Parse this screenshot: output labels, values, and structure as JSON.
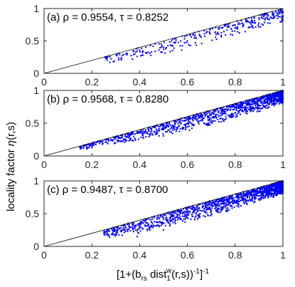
{
  "figure": {
    "ylabel_main": "locality factor ",
    "ylabel_sym": "η",
    "ylabel_tail": "(r,s)",
    "xlabel_a": "[1+(b",
    "xlabel_b": "rs",
    "xlabel_c": " dist",
    "xlabel_d": "1",
    "xlabel_e": "w",
    "xlabel_f": "(r,s))",
    "xlabel_g": "-1",
    "xlabel_h": "]",
    "xlabel_i": "-1"
  },
  "chart_data": [
    {
      "type": "scatter",
      "panel": "a",
      "annotation": "(a) ρ = 0.9554, τ = 0.8252",
      "xlim": [
        0,
        1
      ],
      "ylim": [
        0,
        1
      ],
      "xticks": [
        "0",
        "0.2",
        "0.4",
        "0.6",
        "0.8",
        "1"
      ],
      "yticks": [
        "0",
        "0.5",
        "1"
      ],
      "show_xticklabels": true,
      "reference_line": "y = x",
      "point_color": "#0000ff",
      "n_points": 300,
      "seed": 11,
      "xrange_points": [
        0.25,
        1
      ],
      "x_skew": 1.8,
      "ratio_range": [
        0.55,
        1
      ],
      "points_sample": [
        [
          0.26,
          0.25
        ],
        [
          0.29,
          0.18
        ],
        [
          0.37,
          0.22
        ],
        [
          0.39,
          0.26
        ],
        [
          0.41,
          0.28
        ],
        [
          0.45,
          0.33
        ],
        [
          0.5,
          0.37
        ],
        [
          0.55,
          0.48
        ],
        [
          0.6,
          0.5
        ],
        [
          0.66,
          0.46
        ],
        [
          0.72,
          0.6
        ],
        [
          0.8,
          0.7
        ],
        [
          0.87,
          0.82
        ],
        [
          0.92,
          0.88
        ],
        [
          0.97,
          0.95
        ]
      ]
    },
    {
      "type": "scatter",
      "panel": "b",
      "annotation": "(b) ρ = 0.9568, τ = 0.8280",
      "xlim": [
        0,
        1
      ],
      "ylim": [
        0,
        1
      ],
      "xticks": [
        "0",
        "0.2",
        "0.4",
        "0.6",
        "0.8",
        "1"
      ],
      "yticks": [
        "0",
        "0.5",
        "1"
      ],
      "show_xticklabels": true,
      "reference_line": "y = x",
      "point_color": "#0000ff",
      "n_points": 1200,
      "seed": 23,
      "xrange_points": [
        0.15,
        1
      ],
      "x_skew": 2.3,
      "ratio_range": [
        0.6,
        1
      ],
      "points_sample": [
        [
          0.15,
          0.13
        ],
        [
          0.22,
          0.21
        ],
        [
          0.35,
          0.3
        ],
        [
          0.45,
          0.42
        ],
        [
          0.52,
          0.4
        ],
        [
          0.6,
          0.5
        ],
        [
          0.65,
          0.6
        ],
        [
          0.7,
          0.55
        ],
        [
          0.75,
          0.7
        ],
        [
          0.8,
          0.66
        ],
        [
          0.85,
          0.8
        ],
        [
          0.9,
          0.85
        ],
        [
          0.95,
          0.92
        ],
        [
          1.0,
          0.99
        ]
      ]
    },
    {
      "type": "scatter",
      "panel": "c",
      "annotation": "(c) ρ = 0.9487, τ = 0.8700",
      "xlim": [
        0,
        1
      ],
      "ylim": [
        0,
        1
      ],
      "xticks": [
        "0",
        "0.2",
        "0.4",
        "0.6",
        "0.8",
        "1"
      ],
      "yticks": [
        "0",
        "0.5",
        "1"
      ],
      "show_xticklabels": true,
      "reference_line": "y = x",
      "point_color": "#0000ff",
      "n_points": 1500,
      "seed": 37,
      "xrange_points": [
        0.25,
        1
      ],
      "x_skew": 2.6,
      "ratio_range": [
        0.45,
        1
      ],
      "points_sample": [
        [
          0.26,
          0.18
        ],
        [
          0.39,
          0.15
        ],
        [
          0.45,
          0.3
        ],
        [
          0.5,
          0.25
        ],
        [
          0.55,
          0.35
        ],
        [
          0.6,
          0.48
        ],
        [
          0.65,
          0.45
        ],
        [
          0.7,
          0.55
        ],
        [
          0.75,
          0.6
        ],
        [
          0.8,
          0.68
        ],
        [
          0.85,
          0.75
        ],
        [
          0.9,
          0.82
        ],
        [
          0.95,
          0.9
        ],
        [
          1.0,
          0.99
        ]
      ]
    }
  ]
}
